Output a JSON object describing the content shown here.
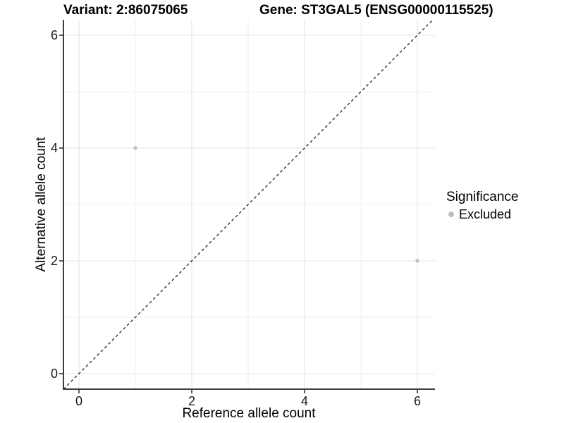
{
  "chart_data": {
    "type": "scatter",
    "titles": {
      "left": "Variant: 2:86075065",
      "right": "Gene: ST3GAL5 (ENSG00000115525)"
    },
    "xlabel": "Reference allele count",
    "ylabel": "Alternative allele count",
    "xlim": [
      -0.275,
      6.3125
    ],
    "ylim": [
      -0.275,
      6.275
    ],
    "x_ticks": [
      0,
      2,
      4,
      6
    ],
    "y_ticks": [
      0,
      2,
      4,
      6
    ],
    "x_minor": [
      1,
      3,
      5
    ],
    "y_minor": [
      1,
      3,
      5
    ],
    "grid": "on",
    "identity_line": {
      "style": "dashed",
      "slope": 1,
      "intercept": 0,
      "color": "#111111"
    },
    "series": [
      {
        "name": "Excluded",
        "color": "#bebebe",
        "points": [
          [
            1,
            4
          ],
          [
            6,
            2
          ]
        ]
      }
    ],
    "legend": {
      "title": "Significance",
      "position": "right",
      "items": [
        {
          "label": "Excluded",
          "color": "#bebebe"
        }
      ]
    },
    "colors": {
      "background": "#ffffff",
      "grid_major": "#e4e4e4",
      "grid_minor": "#efefef",
      "axis_line": "#3d3d3d",
      "tick_mark": "#333333",
      "text": "#000000"
    }
  }
}
